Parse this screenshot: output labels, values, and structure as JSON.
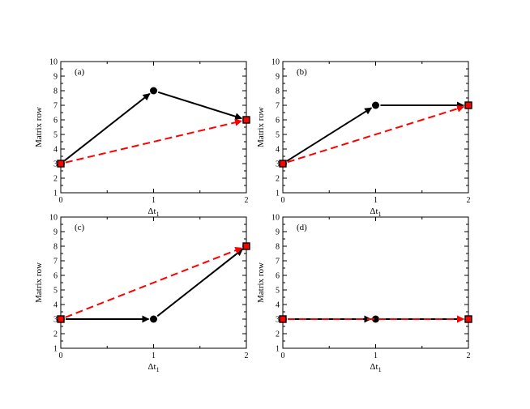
{
  "chart_data": [
    {
      "type": "line",
      "panel_label": "(a)",
      "xlabel": "Δt",
      "xlabel_subscript": "1",
      "ylabel": "Matrix row",
      "xlim": [
        0,
        2
      ],
      "ylim": [
        1,
        10
      ],
      "xticks": [
        "0",
        "1",
        "2"
      ],
      "yticks": [
        "1",
        "2",
        "3",
        "4",
        "5",
        "6",
        "7",
        "8",
        "9",
        "10"
      ],
      "grid": false,
      "series": [
        {
          "style": "solid-black-arrows",
          "color": "#000000",
          "marker": "circle",
          "x": [
            0,
            1,
            2
          ],
          "y": [
            3,
            8,
            6
          ]
        },
        {
          "style": "dashed-red-arrow",
          "color": "#ff0000",
          "marker": "square",
          "x": [
            0,
            2
          ],
          "y": [
            3,
            6
          ]
        }
      ]
    },
    {
      "type": "line",
      "panel_label": "(b)",
      "xlabel": "Δt",
      "xlabel_subscript": "1",
      "ylabel": "Matrix row",
      "xlim": [
        0,
        2
      ],
      "ylim": [
        1,
        10
      ],
      "xticks": [
        "0",
        "1",
        "2"
      ],
      "yticks": [
        "1",
        "2",
        "3",
        "4",
        "5",
        "6",
        "7",
        "8",
        "9",
        "10"
      ],
      "grid": false,
      "series": [
        {
          "style": "solid-black-arrows",
          "color": "#000000",
          "marker": "circle",
          "x": [
            0,
            1,
            2
          ],
          "y": [
            3,
            7,
            7
          ]
        },
        {
          "style": "dashed-red-arrow",
          "color": "#ff0000",
          "marker": "square",
          "x": [
            0,
            2
          ],
          "y": [
            3,
            7
          ]
        }
      ]
    },
    {
      "type": "line",
      "panel_label": "(c)",
      "xlabel": "Δt",
      "xlabel_subscript": "1",
      "ylabel": "Matrix row",
      "xlim": [
        0,
        2
      ],
      "ylim": [
        1,
        10
      ],
      "xticks": [
        "0",
        "1",
        "2"
      ],
      "yticks": [
        "1",
        "2",
        "3",
        "4",
        "5",
        "6",
        "7",
        "8",
        "9",
        "10"
      ],
      "grid": false,
      "series": [
        {
          "style": "solid-black-arrows",
          "color": "#000000",
          "marker": "circle",
          "x": [
            0,
            1,
            2
          ],
          "y": [
            3,
            3,
            8
          ]
        },
        {
          "style": "dashed-red-arrow",
          "color": "#ff0000",
          "marker": "square",
          "x": [
            0,
            2
          ],
          "y": [
            3,
            8
          ]
        }
      ]
    },
    {
      "type": "line",
      "panel_label": "(d)",
      "xlabel": "Δt",
      "xlabel_subscript": "1",
      "ylabel": "Matrix row",
      "xlim": [
        0,
        2
      ],
      "ylim": [
        1,
        10
      ],
      "xticks": [
        "0",
        "1",
        "2"
      ],
      "yticks": [
        "1",
        "2",
        "3",
        "4",
        "5",
        "6",
        "7",
        "8",
        "9",
        "10"
      ],
      "grid": false,
      "series": [
        {
          "style": "solid-black-arrows",
          "color": "#000000",
          "marker": "circle",
          "x": [
            0,
            1,
            2
          ],
          "y": [
            3,
            3,
            3
          ]
        },
        {
          "style": "dashed-red-arrow",
          "color": "#ff0000",
          "marker": "square",
          "x": [
            0,
            2
          ],
          "y": [
            3,
            3
          ]
        }
      ]
    }
  ]
}
